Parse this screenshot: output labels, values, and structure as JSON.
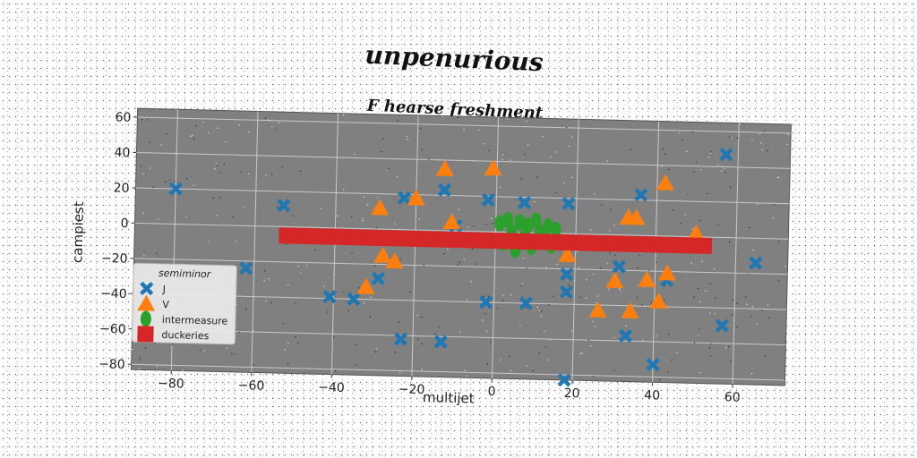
{
  "chart_data": {
    "type": "scatter",
    "title": "unpenurious",
    "subtitle": "F hearse freshment",
    "xlabel": "multijet",
    "ylabel": "campiest",
    "xlim": [
      -90,
      73
    ],
    "ylim": [
      -83,
      65
    ],
    "xticks": [
      "−80",
      "−60",
      "−40",
      "−20",
      "0",
      "20",
      "40",
      "60"
    ],
    "yticks": [
      "−80",
      "−60",
      "−40",
      "−20",
      "0",
      "20",
      "40",
      "60"
    ],
    "grid": true,
    "legend_title": "semiminor",
    "legend_position": "bottom-left",
    "series": [
      {
        "name": "J",
        "marker": "x",
        "color": "#1f77b4",
        "points": [
          [
            -80,
            20
          ],
          [
            -62,
            -24
          ],
          [
            -53,
            12
          ],
          [
            -41,
            -39
          ],
          [
            -35,
            -40
          ],
          [
            -29,
            -28
          ],
          [
            -23,
            -62
          ],
          [
            -23,
            18
          ],
          [
            -13,
            23
          ],
          [
            -13,
            -63
          ],
          [
            -10,
            3
          ],
          [
            -2,
            18
          ],
          [
            -2,
            -40
          ],
          [
            7,
            17
          ],
          [
            8,
            -40
          ],
          [
            18,
            17
          ],
          [
            18,
            -23
          ],
          [
            18,
            -33
          ],
          [
            18,
            -83
          ],
          [
            31,
            -18
          ],
          [
            33,
            -57
          ],
          [
            36,
            23
          ],
          [
            40,
            -73
          ],
          [
            43,
            -25
          ],
          [
            57,
            47
          ],
          [
            57,
            -50
          ],
          [
            65,
            -14
          ]
        ]
      },
      {
        "name": "V",
        "marker": "^",
        "color": "#ff7f0e",
        "points": [
          [
            -29,
            12
          ],
          [
            -20,
            18
          ],
          [
            -13,
            35
          ],
          [
            -11,
            5
          ],
          [
            -1,
            36
          ],
          [
            -28,
            -15
          ],
          [
            -25,
            -18
          ],
          [
            -32,
            -33
          ],
          [
            18,
            -12
          ],
          [
            26,
            -43
          ],
          [
            30,
            -26
          ],
          [
            33,
            10
          ],
          [
            35,
            10
          ],
          [
            34,
            -43
          ],
          [
            38,
            -25
          ],
          [
            42,
            30
          ],
          [
            41,
            -37
          ],
          [
            43,
            -21
          ],
          [
            50,
            2
          ]
        ]
      },
      {
        "name": "intermeasure",
        "marker": "o",
        "color": "#2ca02c",
        "points": [
          [
            1,
            5
          ],
          [
            2,
            -6
          ],
          [
            3,
            7
          ],
          [
            4,
            0
          ],
          [
            5,
            -10
          ],
          [
            6,
            6
          ],
          [
            7,
            -3
          ],
          [
            8,
            4
          ],
          [
            9,
            -8
          ],
          [
            10,
            7
          ],
          [
            11,
            0
          ],
          [
            12,
            -5
          ],
          [
            13,
            4
          ],
          [
            14,
            -7
          ],
          [
            15,
            2
          ]
        ]
      },
      {
        "name": "duckeries",
        "marker": "s",
        "color": "#d62728",
        "points": [
          [
            -52,
            -5
          ],
          [
            -48,
            -5
          ],
          [
            -44,
            -5
          ],
          [
            -40,
            -5
          ],
          [
            -36,
            -5
          ],
          [
            -32,
            -5
          ],
          [
            -28,
            -5
          ],
          [
            -24,
            -5
          ],
          [
            -20,
            -5
          ],
          [
            -16,
            -5
          ],
          [
            -12,
            -5
          ],
          [
            -8,
            -5
          ],
          [
            -4,
            -5
          ],
          [
            0,
            -5
          ],
          [
            4,
            -5
          ],
          [
            8,
            -5
          ],
          [
            12,
            -5
          ],
          [
            16,
            -5
          ],
          [
            20,
            -5
          ],
          [
            24,
            -5
          ],
          [
            28,
            -5
          ],
          [
            32,
            -5
          ],
          [
            36,
            -5
          ],
          [
            40,
            -5
          ],
          [
            44,
            -5
          ],
          [
            48,
            -5
          ],
          [
            52,
            -5
          ]
        ]
      }
    ]
  }
}
